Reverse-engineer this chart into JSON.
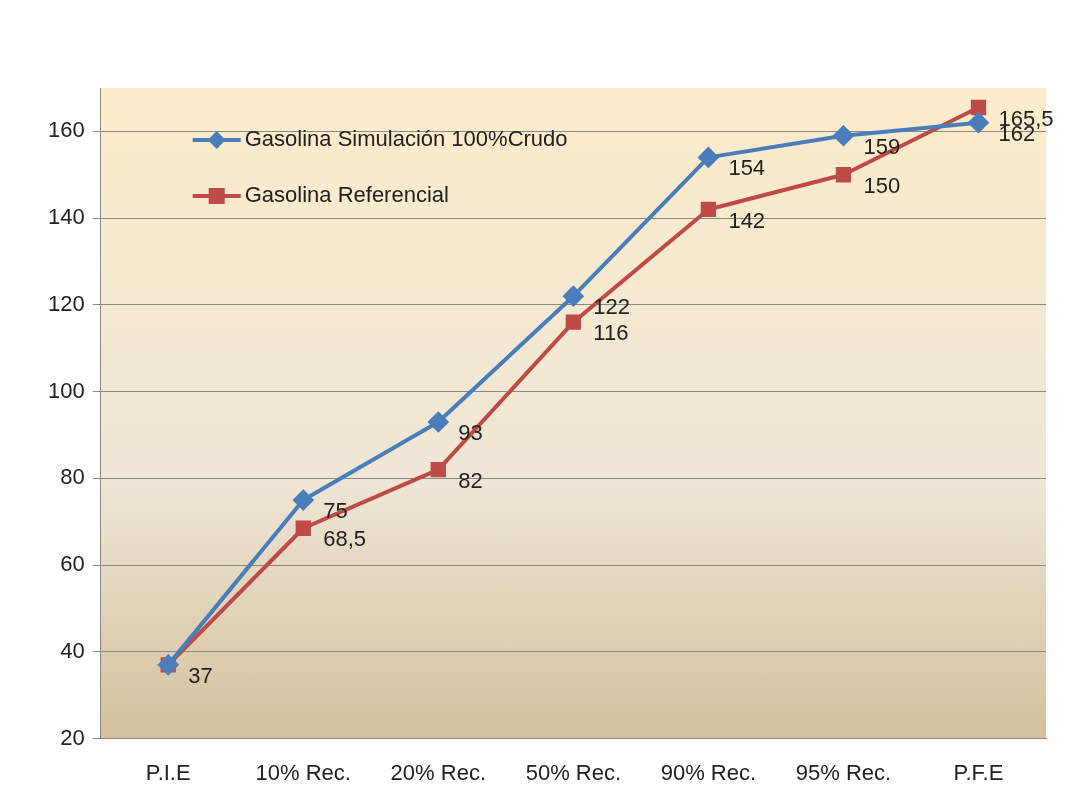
{
  "chart_data": {
    "type": "line",
    "categories": [
      "P.I.E",
      "10% Rec.",
      "20% Rec.",
      "50% Rec.",
      "90% Rec.",
      "95% Rec.",
      "P.F.E"
    ],
    "series": [
      {
        "name": "Gasolina Simulación 100%Crudo",
        "color": "#4a7ebb",
        "marker": "diamond",
        "values": [
          37,
          75,
          93,
          122,
          154,
          159,
          162
        ],
        "value_labels": [
          null,
          "75",
          "93",
          "122",
          "154",
          "159",
          "162"
        ]
      },
      {
        "name": "Gasolina Referencial",
        "color": "#be4b48",
        "marker": "square",
        "values": [
          37,
          68.5,
          82,
          116,
          142,
          150,
          165.5
        ],
        "value_labels": [
          "37",
          "68,5",
          "82",
          "116",
          "142",
          "150",
          "165,5"
        ]
      }
    ],
    "ylim": [
      20,
      170
    ],
    "yticks": [
      20,
      40,
      60,
      80,
      100,
      120,
      140,
      160
    ],
    "grid": "y",
    "legend": "top left",
    "line_style": "solid"
  }
}
